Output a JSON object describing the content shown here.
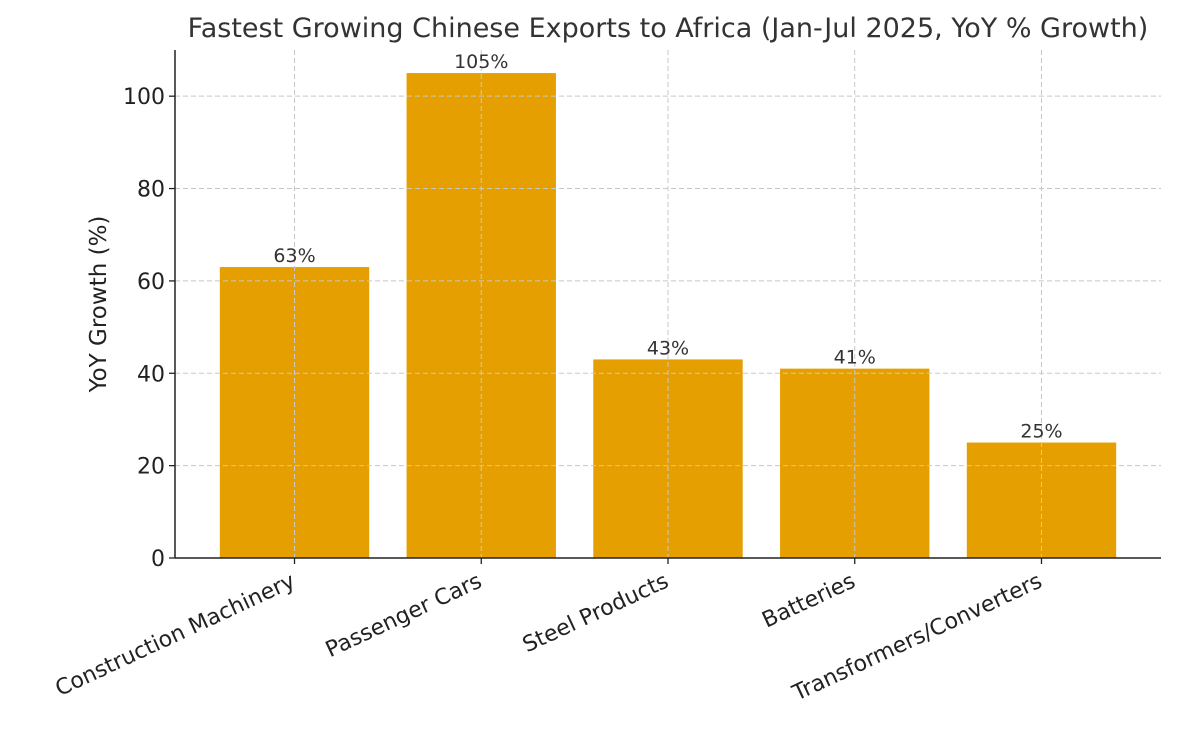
{
  "chart_data": {
    "type": "bar",
    "title": "Fastest Growing Chinese Exports to Africa (Jan-Jul 2025, YoY % Growth)",
    "xlabel": "",
    "ylabel": "YoY Growth (%)",
    "categories": [
      "Construction Machinery",
      "Passenger Cars",
      "Steel Products",
      "Batteries",
      "Transformers/Converters"
    ],
    "values": [
      63,
      105,
      43,
      41,
      25
    ],
    "data_labels": [
      "63%",
      "105%",
      "43%",
      "41%",
      "25%"
    ],
    "ylim": [
      0,
      110
    ],
    "yticks": [
      0,
      20,
      40,
      60,
      80,
      100
    ],
    "grid": true,
    "bar_color": "#E69F00"
  }
}
